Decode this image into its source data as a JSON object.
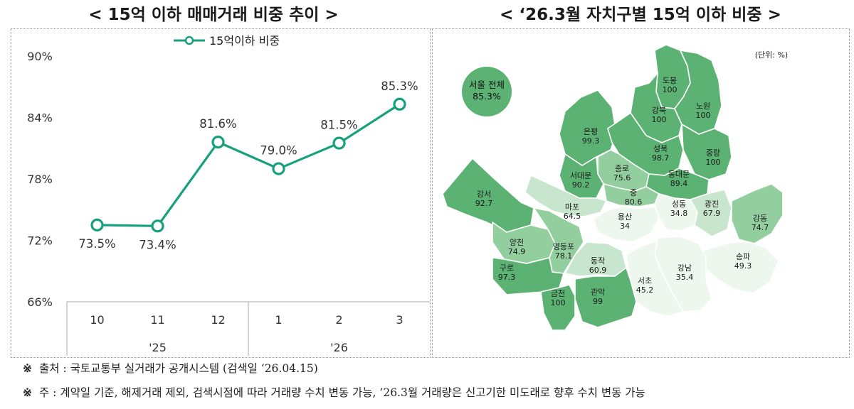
{
  "left_title": "< 15억 이하 매매거래 비중 추이 >",
  "right_title": "< ‘26.3월 자치구별 15억 이하 비중 >",
  "chart_data": [
    {
      "type": "line",
      "title": "< 15억 이하 매매거래 비중 추이 >",
      "categories": [
        "10",
        "11",
        "12",
        "1",
        "2",
        "3"
      ],
      "year_groups": [
        {
          "label": "'25",
          "categories": [
            "10",
            "11",
            "12"
          ]
        },
        {
          "label": "'26",
          "categories": [
            "1",
            "2",
            "3"
          ]
        }
      ],
      "series": [
        {
          "name": "15억이하 비중",
          "values": [
            73.5,
            73.4,
            81.6,
            79.0,
            81.5,
            85.3
          ],
          "labels": [
            "73.5%",
            "73.4%",
            "81.6%",
            "79.0%",
            "81.5%",
            "85.3%"
          ],
          "color": "#16a07c"
        }
      ],
      "ylim": [
        66,
        90
      ],
      "yticks": [
        66,
        72,
        78,
        84,
        90
      ],
      "ytick_labels": [
        "66%",
        "72%",
        "78%",
        "84%",
        "90%"
      ],
      "legend_position": "top-center",
      "grid": false
    },
    {
      "type": "map",
      "title": "< ‘26.3월 자치구별 15억 이하 비중 >",
      "unit": "(단위: %)",
      "overall": {
        "label": "서울 전체",
        "value": "85.3%"
      },
      "districts": [
        {
          "name": "도봉",
          "value": 100
        },
        {
          "name": "강북",
          "value": 100
        },
        {
          "name": "노원",
          "value": 100
        },
        {
          "name": "은평",
          "value": 99.3
        },
        {
          "name": "성북",
          "value": 98.7
        },
        {
          "name": "중랑",
          "value": 100
        },
        {
          "name": "종로",
          "value": 75.6
        },
        {
          "name": "서대문",
          "value": 90.2
        },
        {
          "name": "동대문",
          "value": 89.4
        },
        {
          "name": "중",
          "value": 80.6
        },
        {
          "name": "강서",
          "value": 92.7
        },
        {
          "name": "마포",
          "value": 64.5
        },
        {
          "name": "성동",
          "value": 34.8
        },
        {
          "name": "광진",
          "value": 67.9
        },
        {
          "name": "용산",
          "value": 34.0
        },
        {
          "name": "강동",
          "value": 74.7
        },
        {
          "name": "양천",
          "value": 74.9
        },
        {
          "name": "영등포",
          "value": 78.1
        },
        {
          "name": "송파",
          "value": 49.3
        },
        {
          "name": "구로",
          "value": 97.3
        },
        {
          "name": "동작",
          "value": 60.9
        },
        {
          "name": "강남",
          "value": 35.4
        },
        {
          "name": "서초",
          "value": 45.2
        },
        {
          "name": "금천",
          "value": 100
        },
        {
          "name": "관악",
          "value": 99.0
        }
      ]
    }
  ],
  "colors": {
    "line": "#16a07c",
    "shade_dark": "#5bb272",
    "shade_mid": "#93cf9e",
    "shade_light": "#c7e6cd",
    "shade_lightest": "#eef7ee",
    "river": "#ffffff"
  },
  "footnotes": [
    {
      "mark": "※",
      "text": "출처 : 국토교통부 실거래가 공개시스템 (검색일 ‘26.04.15)"
    },
    {
      "mark": "※",
      "text": "주 : 계약일 기준, 해제거래 제외, 검색시점에 따라 거래량 수치 변동 가능, ’26.3월 거래량은 신고기한 미도래로 향후 수치 변동 가능"
    }
  ]
}
